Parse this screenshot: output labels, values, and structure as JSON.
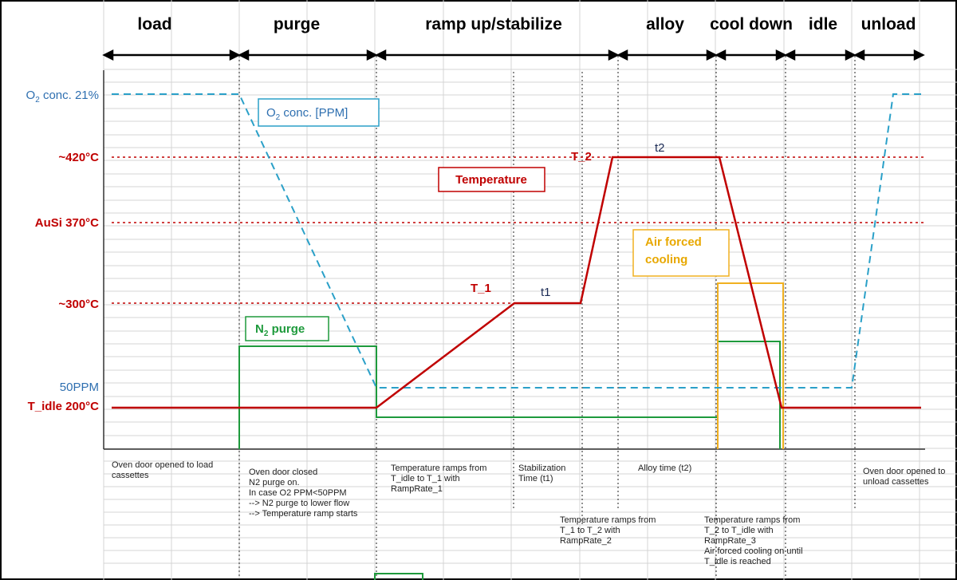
{
  "phases": [
    "load",
    "purge",
    "ramp up/stabilize",
    "alloy",
    "cool down",
    "idle",
    "unload"
  ],
  "axis_labels": {
    "o2_main": "O",
    "o2_sub": "2",
    "o2_rest": " conc. 21%",
    "t420": "~420°C",
    "ausi": "AuSi 370°C",
    "t300": "~300°C",
    "ppm50": "50PPM",
    "tidle": "T_idle 200°C"
  },
  "boxes": {
    "o2_main": "O",
    "o2_sub": "2",
    "o2_rest": " conc. [PPM]",
    "temperature": "Temperature",
    "air_line1": "Air forced",
    "air_line2": "cooling",
    "n2_main": "N",
    "n2_sub": "2",
    "n2_rest": " purge"
  },
  "curve_labels": {
    "t1": "T_1",
    "t2": "T_2",
    "time1": "t1",
    "time2": "t2"
  },
  "notes": {
    "load": [
      "Oven door opened to load",
      "cassettes"
    ],
    "purge": [
      "Oven door closed",
      "N2 purge on.",
      "In case O2 PPM<50PPM",
      "--> N2 purge to lower flow",
      "--> Temperature ramp starts"
    ],
    "ramp1": [
      "Temperature ramps from",
      "T_idle to T_1 with",
      "RampRate_1"
    ],
    "stab": [
      "Stabilization",
      "Time (t1)"
    ],
    "ramp2": [
      "Temperature ramps from",
      "T_1 to T_2 with",
      "RampRate_2"
    ],
    "alloy": [
      "Alloy time (t2)"
    ],
    "cool": [
      "Temperature ramps from",
      "T_2 to T_idle with",
      "RampRate_3",
      "Air forced cooling on until",
      "T_idle is reached"
    ],
    "unload": [
      "Oven door opened to",
      "unload cassettes"
    ]
  },
  "colors": {
    "temperature": "#c00000",
    "o2": "#2aa0c8",
    "n2": "#1e9a3c",
    "air": "#f0b020",
    "label_blue": "#2e6fb0"
  }
}
